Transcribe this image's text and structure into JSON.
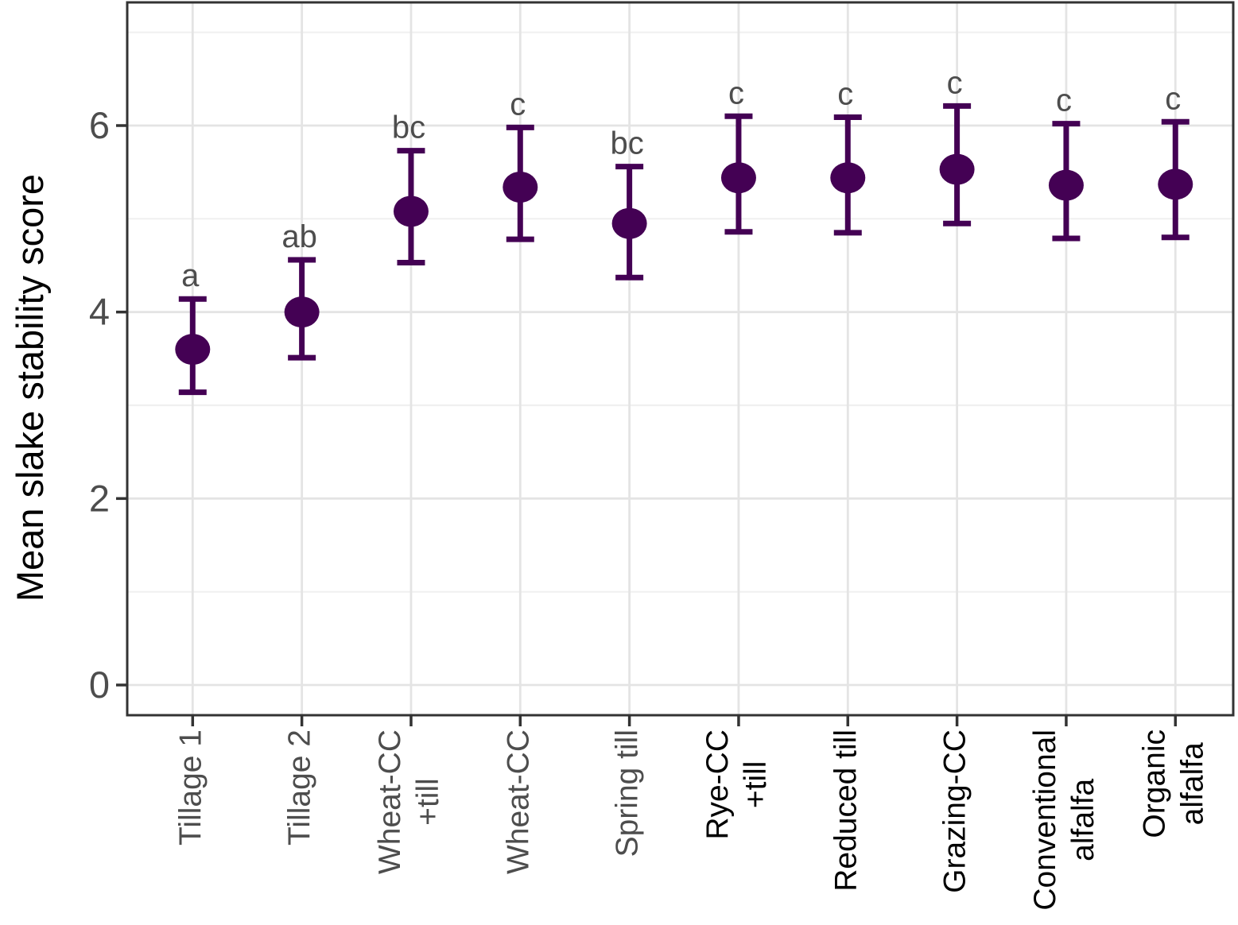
{
  "chart_data": {
    "type": "scatter",
    "subtype": "pointrange-errorbar",
    "title": "",
    "xlabel": "",
    "ylabel": "Mean slake stability score",
    "ylim": [
      -0.32,
      7.32
    ],
    "yticks": [
      0,
      2,
      4,
      6
    ],
    "ytick_labels": [
      "0",
      "2",
      "4",
      "6"
    ],
    "minor_gridlines_y": [
      1,
      3,
      5,
      7
    ],
    "grid": true,
    "legend_position": "none",
    "categories": [
      "Tillage 1",
      "Tillage 2",
      "Wheat-CC +till",
      "Wheat-CC",
      "Spring till",
      "Rye-CC +till",
      "Reduced till",
      "Grazing-CC",
      "Conventional alfalfa",
      "Organic alfalfa"
    ],
    "points": [
      {
        "category": "Tillage 1",
        "label_lines": [
          "Tillage 1"
        ],
        "mean": 3.6,
        "lower": 3.14,
        "upper": 4.14,
        "letter": "a",
        "label_color": "#4d4d4d"
      },
      {
        "category": "Tillage 2",
        "label_lines": [
          "Tillage 2"
        ],
        "mean": 4.0,
        "lower": 3.51,
        "upper": 4.56,
        "letter": "ab",
        "label_color": "#4d4d4d"
      },
      {
        "category": "Wheat-CC +till",
        "label_lines": [
          "Wheat-CC",
          "+till"
        ],
        "mean": 5.08,
        "lower": 4.53,
        "upper": 5.73,
        "letter": "bc",
        "label_color": "#4d4d4d"
      },
      {
        "category": "Wheat-CC",
        "label_lines": [
          "Wheat-CC"
        ],
        "mean": 5.34,
        "lower": 4.78,
        "upper": 5.98,
        "letter": "c",
        "label_color": "#4d4d4d"
      },
      {
        "category": "Spring till",
        "label_lines": [
          "Spring till"
        ],
        "mean": 4.95,
        "lower": 4.37,
        "upper": 5.56,
        "letter": "bc",
        "label_color": "#4d4d4d"
      },
      {
        "category": "Rye-CC +till",
        "label_lines": [
          "Rye-CC",
          "+till"
        ],
        "mean": 5.44,
        "lower": 4.86,
        "upper": 6.1,
        "letter": "c",
        "label_color": "#000000"
      },
      {
        "category": "Reduced till",
        "label_lines": [
          "Reduced till"
        ],
        "mean": 5.44,
        "lower": 4.85,
        "upper": 6.09,
        "letter": "c",
        "label_color": "#000000"
      },
      {
        "category": "Grazing-CC",
        "label_lines": [
          "Grazing-CC"
        ],
        "mean": 5.53,
        "lower": 4.95,
        "upper": 6.21,
        "letter": "c",
        "label_color": "#000000"
      },
      {
        "category": "Conventional alfalfa",
        "label_lines": [
          "Conventional",
          "alfalfa"
        ],
        "mean": 5.36,
        "lower": 4.79,
        "upper": 6.02,
        "letter": "c",
        "label_color": "#000000"
      },
      {
        "category": "Organic alfalfa",
        "label_lines": [
          "Organic",
          "alfalfa"
        ],
        "mean": 5.37,
        "lower": 4.8,
        "upper": 6.04,
        "letter": "c",
        "label_color": "#000000"
      }
    ],
    "colors": {
      "point": "#440154",
      "letter": "#4d4d4d",
      "axis_text": "#4d4d4d",
      "axis_ticks": "#333333",
      "panel_border": "#333333",
      "grid_major": "#e4e4e4",
      "grid_minor": "#f0f0f0",
      "background": "#ffffff"
    }
  }
}
